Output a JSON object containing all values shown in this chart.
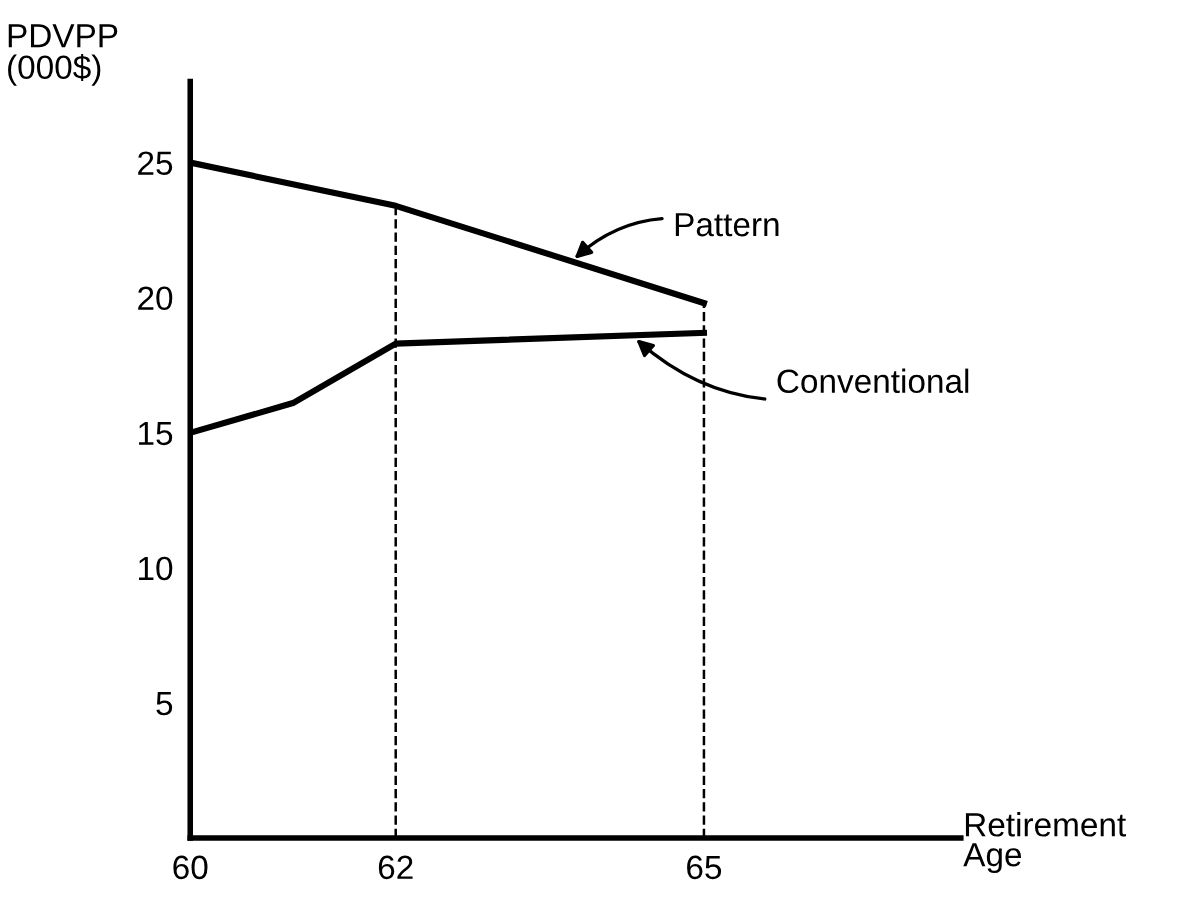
{
  "chart_data": {
    "type": "line",
    "xlabel": "Retirement\nAge",
    "ylabel": "PDVPP\n(000$)",
    "series": [
      {
        "color": "#000000",
        "x": [
          60,
          62,
          65
        ],
        "values": [
          25,
          23.4,
          19.8
        ]
      },
      {
        "color": "#000000",
        "x": [
          60,
          61,
          62,
          65
        ],
        "values": [
          15,
          16.1,
          18.3,
          18.7
        ]
      }
    ],
    "xlim": [
      60,
      67.5
    ],
    "ylim": [
      0,
      28
    ],
    "xticks": [
      60,
      62,
      65
    ],
    "yticks": [
      5,
      10,
      15,
      20,
      25
    ],
    "ref_lines": [
      {
        "axis": "x",
        "value": 62,
        "line_style": "dashed",
        "color": "#000000"
      },
      {
        "axis": "x",
        "value": 65,
        "line_style": "dashed",
        "color": "#000000"
      }
    ],
    "annotations": [
      {
        "text": "Pattern",
        "x": 63.7,
        "y": 21.3
      },
      {
        "text": "Conventional",
        "x": 64.3,
        "y": 18.6
      }
    ],
    "grid": false,
    "legend": false,
    "marker": "none",
    "line_style": "solid"
  }
}
